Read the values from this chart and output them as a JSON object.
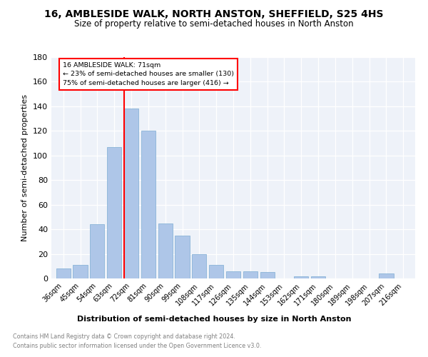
{
  "title": "16, AMBLESIDE WALK, NORTH ANSTON, SHEFFIELD, S25 4HS",
  "subtitle": "Size of property relative to semi-detached houses in North Anston",
  "xlabel": "Distribution of semi-detached houses by size in North Anston",
  "ylabel": "Number of semi-detached properties",
  "categories": [
    "36sqm",
    "45sqm",
    "54sqm",
    "63sqm",
    "72sqm",
    "81sqm",
    "90sqm",
    "99sqm",
    "108sqm",
    "117sqm",
    "126sqm",
    "135sqm",
    "144sqm",
    "153sqm",
    "162sqm",
    "171sqm",
    "180sqm",
    "189sqm",
    "198sqm",
    "207sqm",
    "216sqm"
  ],
  "values": [
    8,
    11,
    44,
    107,
    138,
    120,
    45,
    35,
    20,
    11,
    6,
    6,
    5,
    0,
    2,
    2,
    0,
    0,
    0,
    4,
    0
  ],
  "bar_color": "#aec6e8",
  "bar_edge_color": "#8ab4d8",
  "highlight_index": 4,
  "annotation_label": "16 AMBLESIDE WALK: 71sqm",
  "annotation_line1": "← 23% of semi-detached houses are smaller (130)",
  "annotation_line2": "75% of semi-detached houses are larger (416) →",
  "ylim": [
    0,
    180
  ],
  "yticks": [
    0,
    20,
    40,
    60,
    80,
    100,
    120,
    140,
    160,
    180
  ],
  "footer1": "Contains HM Land Registry data © Crown copyright and database right 2024.",
  "footer2": "Contains public sector information licensed under the Open Government Licence v3.0.",
  "bg_color": "#eef2f9",
  "title_fontsize": 10,
  "subtitle_fontsize": 8.5
}
